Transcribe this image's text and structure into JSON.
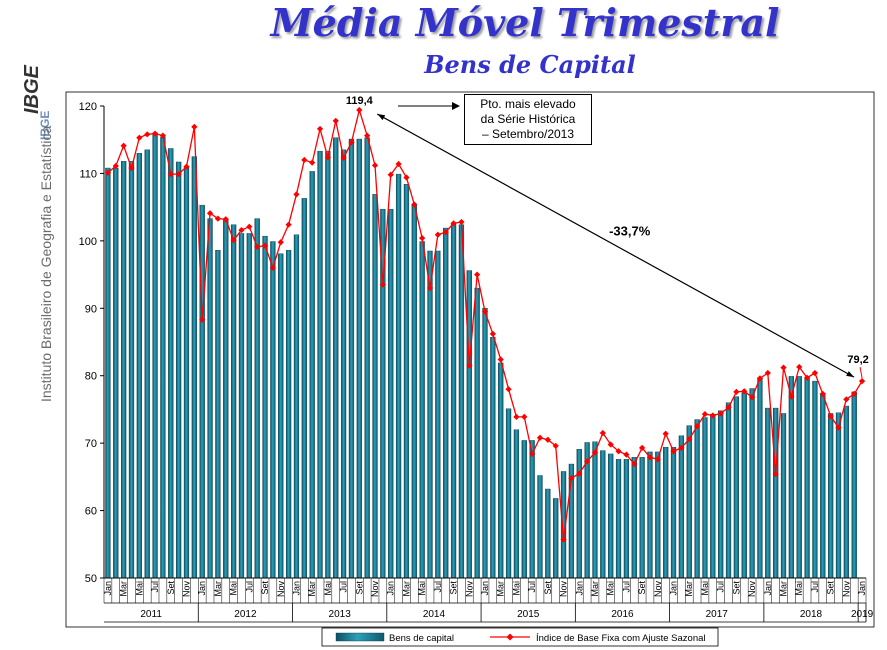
{
  "page": {
    "title": "Média Móvel Trimestral",
    "subtitle": "Bens de Capital",
    "sidebar_text": "Instituto Brasileiro de Geografia e Estatística",
    "sidebar_brand": "IBGE",
    "logo_label": "IBGE",
    "colors": {
      "title": "#3333cc",
      "bar": "#1f7f96",
      "line": "#ff0000"
    }
  },
  "chart_data": {
    "type": "bar",
    "title": "Média Móvel Trimestral",
    "subtitle": "Bens de Capital",
    "ylim": [
      50,
      120
    ],
    "yticks": [
      50,
      60,
      70,
      80,
      90,
      100,
      110,
      120
    ],
    "years": [
      "2011",
      "2012",
      "2013",
      "2014",
      "2015",
      "2016",
      "2017",
      "2018",
      "2019"
    ],
    "month_labels": [
      "Jan",
      "",
      "Mar",
      "",
      "Mai",
      "",
      "Jul",
      "",
      "Set",
      "",
      "Nov",
      ""
    ],
    "annotations": {
      "peak": "119,4",
      "last": "79,2",
      "change": "-33,7%",
      "note": [
        "Pto. mais elevado",
        "da Série Histórica",
        "– Setembro/2013"
      ]
    },
    "series": [
      {
        "name": "Bens de capital",
        "type": "bar",
        "values": [
          110.8,
          110.8,
          111.8,
          111.8,
          113.0,
          113.5,
          116.0,
          115.4,
          113.7,
          111.7,
          110.9,
          112.5,
          105.3,
          103.3,
          98.6,
          103.3,
          102.4,
          101.1,
          101.1,
          103.3,
          100.7,
          99.9,
          98.1,
          98.6,
          100.9,
          106.3,
          110.3,
          113.3,
          113.3,
          115.3,
          113.5,
          115.1,
          115.1,
          115.3,
          106.9,
          104.7,
          104.7,
          109.9,
          108.4,
          105.3,
          99.9,
          98.5,
          98.5,
          101.9,
          102.5,
          102.4,
          95.6,
          93.0,
          90.0,
          85.7,
          81.9,
          75.1,
          72.0,
          70.4,
          70.4,
          65.2,
          63.2,
          61.8,
          65.8,
          66.9,
          69.1,
          70.1,
          70.2,
          68.9,
          68.4,
          67.6,
          67.6,
          67.9,
          67.9,
          68.7,
          68.7,
          69.4,
          69.4,
          71.1,
          72.6,
          73.5,
          73.8,
          74.3,
          74.8,
          76.0,
          76.9,
          77.5,
          78.1,
          79.7,
          75.2,
          75.2,
          74.4,
          79.9,
          79.9,
          79.7,
          79.2,
          77.4,
          74.4,
          74.5,
          75.5,
          77.6
        ]
      },
      {
        "name": "Índice de Base Fixa com Ajuste Sazonal",
        "type": "line",
        "values": [
          110.1,
          111.1,
          114.1,
          110.8,
          115.3,
          115.8,
          115.9,
          115.6,
          109.9,
          109.9,
          111.0,
          116.9,
          88.3,
          104.1,
          103.3,
          103.2,
          100.1,
          101.6,
          102.1,
          99.1,
          99.3,
          96.0,
          99.8,
          102.4,
          106.9,
          112.0,
          111.6,
          116.6,
          112.4,
          117.8,
          112.3,
          114.6,
          119.4,
          115.6,
          111.2,
          93.5,
          109.8,
          111.4,
          109.4,
          105.4,
          100.4,
          93.0,
          100.9,
          101.3,
          102.6,
          102.8,
          81.5,
          95.0,
          89.5,
          86.2,
          82.4,
          78.0,
          73.9,
          73.9,
          68.4,
          70.8,
          70.5,
          69.6,
          55.7,
          64.8,
          65.5,
          67.3,
          68.6,
          71.5,
          69.8,
          68.8,
          68.3,
          66.9,
          69.3,
          67.9,
          67.6,
          71.4,
          68.8,
          69.3,
          70.6,
          72.5,
          74.3,
          74.1,
          74.4,
          75.3,
          77.6,
          77.7,
          76.8,
          79.6,
          80.4,
          65.4,
          81.2,
          76.9,
          81.3,
          79.7,
          80.4,
          77.3,
          74.0,
          72.3,
          76.5,
          77.3,
          79.2
        ]
      }
    ]
  }
}
